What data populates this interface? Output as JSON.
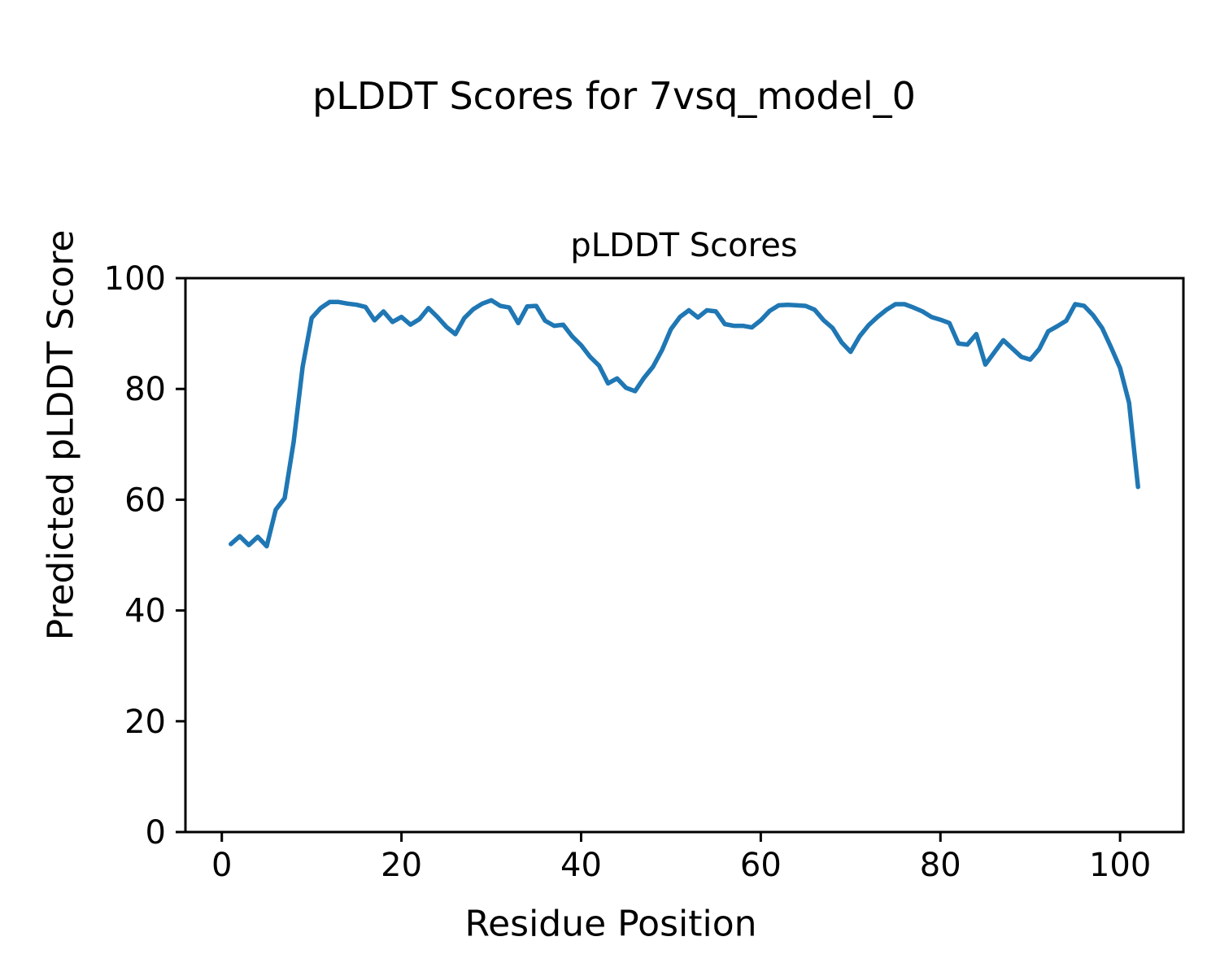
{
  "figure": {
    "suptitle": "pLDDT Scores for 7vsq_model_0"
  },
  "chart_data": {
    "type": "line",
    "title": "pLDDT Scores",
    "xlabel": "Residue Position",
    "ylabel": "Predicted pLDDT Score",
    "xlim": [
      -4.05,
      107.05
    ],
    "ylim": [
      0,
      100
    ],
    "x_ticks": [
      0,
      20,
      40,
      60,
      80,
      100
    ],
    "y_ticks": [
      0,
      20,
      40,
      60,
      80,
      100
    ],
    "grid": false,
    "legend": "none",
    "line_color": "#1f77b4",
    "x": [
      1,
      2,
      3,
      4,
      5,
      6,
      7,
      8,
      9,
      10,
      11,
      12,
      13,
      14,
      15,
      16,
      17,
      18,
      19,
      20,
      21,
      22,
      23,
      24,
      25,
      26,
      27,
      28,
      29,
      30,
      31,
      32,
      33,
      34,
      35,
      36,
      37,
      38,
      39,
      40,
      41,
      42,
      43,
      44,
      45,
      46,
      47,
      48,
      49,
      50,
      51,
      52,
      53,
      54,
      55,
      56,
      57,
      58,
      59,
      60,
      61,
      62,
      63,
      64,
      65,
      66,
      67,
      68,
      69,
      70,
      71,
      72,
      73,
      74,
      75,
      76,
      77,
      78,
      79,
      80,
      81,
      82,
      83,
      84,
      85,
      86,
      87,
      88,
      89,
      90,
      91,
      92,
      93,
      94,
      95,
      96,
      97,
      98,
      99,
      100,
      101,
      102
    ],
    "y": [
      52.0,
      53.4,
      51.8,
      53.3,
      51.6,
      58.2,
      60.3,
      70.5,
      84.0,
      92.8,
      94.6,
      95.7,
      95.7,
      95.4,
      95.2,
      94.8,
      92.4,
      94.0,
      92.1,
      93.0,
      91.6,
      92.6,
      94.6,
      93.0,
      91.2,
      89.9,
      92.8,
      94.4,
      95.4,
      96.0,
      95.0,
      94.7,
      91.9,
      94.9,
      95.0,
      92.3,
      91.4,
      91.6,
      89.5,
      87.9,
      85.8,
      84.2,
      81.0,
      81.9,
      80.2,
      79.6,
      82.0,
      84.0,
      87.0,
      90.8,
      93.0,
      94.2,
      92.9,
      94.2,
      94.0,
      91.7,
      91.4,
      91.4,
      91.1,
      92.4,
      94.1,
      95.1,
      95.2,
      95.1,
      95.0,
      94.3,
      92.4,
      91.0,
      88.4,
      86.7,
      89.5,
      91.5,
      93.0,
      94.3,
      95.3,
      95.3,
      94.7,
      94.0,
      93.0,
      92.5,
      91.9,
      88.2,
      88.0,
      89.9,
      84.4,
      86.6,
      88.8,
      87.3,
      85.8,
      85.3,
      87.2,
      90.4,
      91.3,
      92.3,
      95.3,
      95.0,
      93.3,
      91.0,
      87.5,
      83.8,
      77.5,
      62.3
    ]
  }
}
